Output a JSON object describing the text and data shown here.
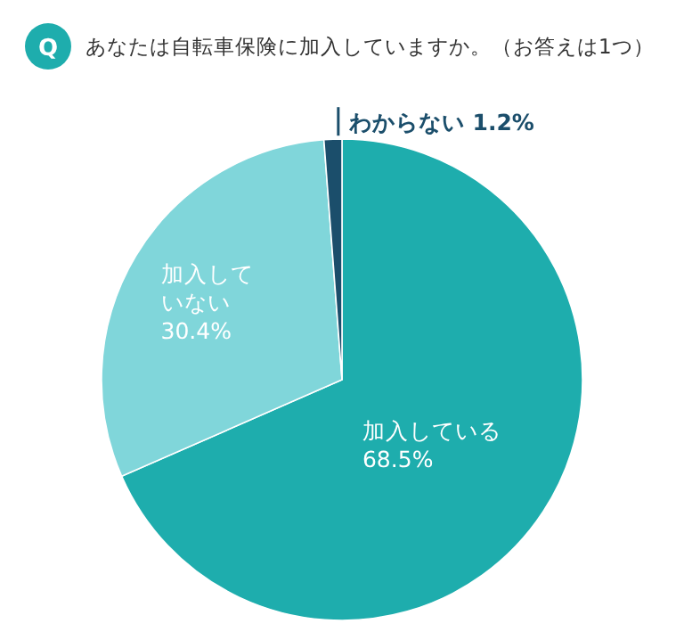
{
  "chart_data": {
    "type": "pie",
    "title": "あなたは自転車保険に加入していますか。（お答えは1つ）",
    "annotations": [
      "Q"
    ],
    "categories": [
      "加入している",
      "加入していない",
      "わからない"
    ],
    "values": [
      68.5,
      30.4,
      1.2
    ],
    "colors": [
      "#1eadad",
      "#80d6da",
      "#1b4e6b"
    ],
    "value_labels": [
      "68.5%",
      "30.4%",
      "1.2%"
    ]
  }
}
